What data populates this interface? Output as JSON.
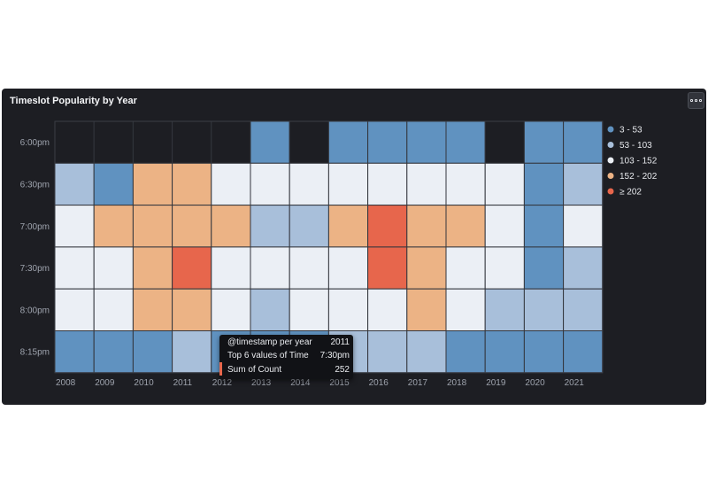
{
  "panel": {
    "title": "Timeslot Popularity by Year",
    "menu_icon": "ellipsis-icon"
  },
  "chart_data": {
    "type": "heatmap",
    "title": "Timeslot Popularity by Year",
    "x": [
      "2008",
      "2009",
      "2010",
      "2011",
      "2012",
      "2013",
      "2014",
      "2015",
      "2016",
      "2017",
      "2018",
      "2019",
      "2020",
      "2021"
    ],
    "y": [
      "6:00pm",
      "6:30pm",
      "7:00pm",
      "7:30pm",
      "8:00pm",
      "8:15pm"
    ],
    "empty_color": "#1d1e23",
    "bands": [
      {
        "label": "3 - 53",
        "color": "#6092c0"
      },
      {
        "label": "53 - 103",
        "color": "#a8bfda"
      },
      {
        "label": "103 - 152",
        "color": "#ebeff5"
      },
      {
        "label": "152 - 202",
        "color": "#ecb385"
      },
      {
        "label": "≥ 202",
        "color": "#e7664c"
      }
    ],
    "cells": [
      [
        -1,
        -1,
        -1,
        -1,
        -1,
        0,
        -1,
        0,
        0,
        0,
        0,
        -1,
        0,
        0
      ],
      [
        1,
        0,
        3,
        3,
        2,
        2,
        2,
        2,
        2,
        2,
        2,
        2,
        0,
        1
      ],
      [
        2,
        3,
        3,
        3,
        3,
        1,
        1,
        3,
        4,
        3,
        3,
        2,
        0,
        2
      ],
      [
        2,
        2,
        3,
        4,
        2,
        2,
        2,
        2,
        4,
        3,
        2,
        2,
        0,
        1
      ],
      [
        2,
        2,
        3,
        3,
        2,
        1,
        2,
        2,
        2,
        3,
        2,
        1,
        1,
        1
      ],
      [
        0,
        0,
        0,
        1,
        0,
        0,
        0,
        1,
        1,
        1,
        0,
        0,
        0,
        0
      ]
    ],
    "legend_position": "right"
  },
  "tooltip": {
    "rows": [
      {
        "label": "@timestamp per year",
        "value": "2011"
      },
      {
        "label": "Top 6 values of Time",
        "value": "7:30pm"
      },
      {
        "label": "Sum of Count",
        "value": "252"
      }
    ]
  }
}
